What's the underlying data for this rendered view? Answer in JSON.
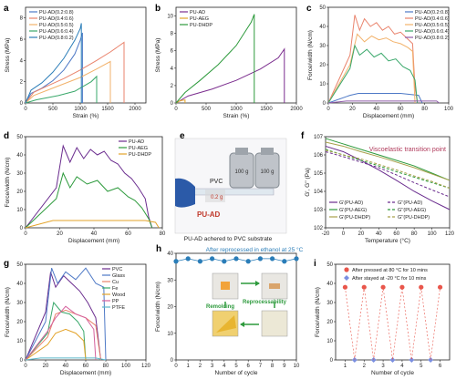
{
  "chart_data": [
    {
      "panel": "a",
      "type": "line",
      "xlabel": "Strain (%)",
      "ylabel": "Stress (MPa)",
      "xlim": [
        0,
        2200
      ],
      "ylim": [
        0,
        9
      ],
      "xticks": [
        0,
        500,
        1000,
        1500,
        2000
      ],
      "yticks": [
        0,
        2,
        4,
        6,
        8
      ],
      "legend": "top-left",
      "series": [
        {
          "name": "PU-AD(0.2:0.8)",
          "color": "#4e79c6",
          "x": [
            0,
            100,
            300,
            500,
            700,
            900,
            1000,
            1040,
            1040
          ],
          "y": [
            0,
            0.9,
            1.4,
            2.1,
            3.1,
            4.6,
            5.9,
            6.6,
            0
          ]
        },
        {
          "name": "PU-AD(0.4:0.6)",
          "color": "#e9836c",
          "x": [
            0,
            150,
            400,
            700,
            1000,
            1300,
            1550,
            1800,
            1800
          ],
          "y": [
            0,
            1.0,
            1.6,
            2.3,
            3.1,
            4.0,
            4.8,
            5.7,
            0
          ]
        },
        {
          "name": "PU-AD(0.5:0.5)",
          "color": "#f2b26b",
          "x": [
            0,
            150,
            400,
            700,
            1000,
            1300,
            1550,
            1550
          ],
          "y": [
            0,
            0.7,
            1.2,
            1.8,
            2.4,
            3.2,
            3.9,
            0
          ]
        },
        {
          "name": "PU-AD(0.6:0.4)",
          "color": "#3aa86b",
          "x": [
            0,
            200,
            600,
            900,
            1200,
            1300,
            1300
          ],
          "y": [
            0,
            0.3,
            0.7,
            1.1,
            2.0,
            2.5,
            0
          ]
        },
        {
          "name": "PU-AD(0.8:0.2)",
          "color": "#2a7db8",
          "x": [
            0,
            100,
            300,
            500,
            700,
            900,
            1000,
            1020,
            1020
          ],
          "y": [
            0,
            1.2,
            1.9,
            2.9,
            4.2,
            5.9,
            7.0,
            7.5,
            0
          ]
        }
      ]
    },
    {
      "panel": "b",
      "type": "line",
      "xlabel": "Strain (%)",
      "ylabel": "Stress (MPa)",
      "xlim": [
        0,
        2000
      ],
      "ylim": [
        0,
        11
      ],
      "xticks": [
        0,
        500,
        1000,
        1500,
        2000
      ],
      "yticks": [
        0,
        2,
        4,
        6,
        8,
        10
      ],
      "legend": "top-left",
      "series": [
        {
          "name": "PU-AD",
          "color": "#7b2d8e",
          "x": [
            0,
            200,
            600,
            1000,
            1400,
            1700,
            1800,
            1800
          ],
          "y": [
            0,
            0.8,
            1.6,
            2.6,
            3.9,
            5.2,
            6.2,
            0
          ]
        },
        {
          "name": "PU-AEG",
          "color": "#e3a32a",
          "x": [
            0,
            50,
            100,
            150,
            150
          ],
          "y": [
            0,
            0.2,
            0.3,
            0.35,
            0
          ]
        },
        {
          "name": "PU-DHDP",
          "color": "#2d9a3c",
          "x": [
            0,
            150,
            400,
            700,
            1000,
            1250,
            1300,
            1300
          ],
          "y": [
            0,
            1.2,
            2.6,
            4.4,
            6.6,
            9.3,
            10.2,
            0
          ]
        }
      ]
    },
    {
      "panel": "c",
      "type": "line",
      "xlabel": "Displacement (mm)",
      "ylabel": "Force/width (N/cm)",
      "xlim": [
        0,
        100
      ],
      "ylim": [
        0,
        50
      ],
      "xticks": [
        0,
        20,
        40,
        60,
        80,
        100
      ],
      "yticks": [
        0,
        10,
        20,
        30,
        40,
        50
      ],
      "legend": "top-right",
      "series": [
        {
          "name": "PU-AD(0.2:0.8)",
          "color": "#4e79c6",
          "x": [
            0,
            18,
            25,
            40,
            60,
            75,
            78
          ],
          "y": [
            0,
            4,
            5,
            5,
            5,
            4,
            0
          ]
        },
        {
          "name": "PU-AD(0.4:0.6)",
          "color": "#e9836c",
          "x": [
            0,
            18,
            22,
            26,
            30,
            35,
            40,
            45,
            50,
            55,
            60,
            65,
            70,
            72,
            74
          ],
          "y": [
            0,
            25,
            46,
            38,
            44,
            40,
            42,
            38,
            40,
            36,
            37,
            34,
            31,
            8,
            0
          ]
        },
        {
          "name": "PU-AD(0.5:0.5)",
          "color": "#f2b26b",
          "x": [
            0,
            18,
            24,
            30,
            36,
            42,
            48,
            54,
            60,
            66,
            70,
            72
          ],
          "y": [
            0,
            20,
            36,
            32,
            35,
            33,
            34,
            32,
            31,
            29,
            27,
            0
          ]
        },
        {
          "name": "PU-AD(0.6:0.4)",
          "color": "#3aa86b",
          "x": [
            0,
            18,
            22,
            26,
            32,
            38,
            44,
            50,
            56,
            62,
            68,
            72,
            74
          ],
          "y": [
            0,
            18,
            30,
            25,
            28,
            24,
            26,
            22,
            23,
            19,
            17,
            12,
            0
          ]
        },
        {
          "name": "PU-AD(0.8:0.2)",
          "color": "#8e5aa8",
          "x": [
            0,
            15,
            30,
            50,
            70,
            90,
            92
          ],
          "y": [
            0,
            1,
            1,
            1,
            1,
            1,
            0
          ]
        }
      ]
    },
    {
      "panel": "d",
      "type": "line",
      "xlabel": "Displacement (mm)",
      "ylabel": "Force/width (N/cm)",
      "xlim": [
        0,
        80
      ],
      "ylim": [
        0,
        50
      ],
      "xticks": [
        0,
        20,
        40,
        60,
        80
      ],
      "yticks": [
        0,
        10,
        20,
        30,
        40,
        50
      ],
      "legend": "top-right",
      "series": [
        {
          "name": "PU-AD",
          "color": "#6a2c8e",
          "x": [
            0,
            18,
            22,
            26,
            30,
            34,
            38,
            42,
            46,
            50,
            54,
            58,
            62,
            66,
            70,
            72,
            74
          ],
          "y": [
            0,
            22,
            45,
            36,
            44,
            38,
            43,
            40,
            42,
            37,
            35,
            30,
            27,
            22,
            16,
            6,
            0
          ]
        },
        {
          "name": "PU-AEG",
          "color": "#2d9a3c",
          "x": [
            0,
            18,
            22,
            26,
            30,
            36,
            42,
            48,
            54,
            60,
            64,
            68,
            72,
            74
          ],
          "y": [
            0,
            16,
            30,
            22,
            28,
            24,
            26,
            20,
            22,
            17,
            15,
            11,
            5,
            0
          ]
        },
        {
          "name": "PU-DHDP",
          "color": "#e3a32a",
          "x": [
            0,
            16,
            30,
            50,
            70,
            76,
            78
          ],
          "y": [
            0,
            4,
            4,
            4,
            4,
            3,
            0
          ]
        }
      ]
    },
    {
      "panel": "f",
      "type": "line",
      "xlabel": "Temperature (°C)",
      "ylabel": "G', G'' (Pa)",
      "scale": "log-y",
      "xlim": [
        -20,
        120
      ],
      "ylim": [
        100,
        10000000
      ],
      "xticks": [
        -20,
        0,
        20,
        40,
        60,
        80,
        100,
        120
      ],
      "annotation": "Viscoelastic transition point",
      "legend": "bottom-left",
      "series": [
        {
          "name": "G'(PU-AD)",
          "color": "#6a2c8e",
          "dash": false,
          "x": [
            -20,
            0,
            20,
            40,
            60,
            80,
            100,
            120
          ],
          "y": [
            3000000,
            1500000,
            500000,
            150000,
            40000,
            10000,
            3000,
            1000
          ]
        },
        {
          "name": "G'(PU-AEG)",
          "color": "#2d9a3c",
          "dash": false,
          "x": [
            -20,
            0,
            20,
            40,
            60,
            80,
            100,
            120
          ],
          "y": [
            8000000,
            4000000,
            2000000,
            1000000,
            500000,
            250000,
            100000,
            40000
          ]
        },
        {
          "name": "G'(PU-DHDP)",
          "color": "#a8a04a",
          "dash": false,
          "x": [
            -20,
            0,
            20,
            40,
            60,
            80,
            100,
            120
          ],
          "y": [
            5000000,
            3000000,
            1500000,
            800000,
            400000,
            200000,
            90000,
            40000
          ]
        },
        {
          "name": "G''(PU-AD)",
          "color": "#6a2c8e",
          "dash": true,
          "x": [
            -20,
            0,
            20,
            40,
            60,
            80,
            100,
            120
          ],
          "y": [
            1500000,
            800000,
            400000,
            200000,
            80000,
            30000,
            12000,
            5000
          ]
        },
        {
          "name": "G''(PU-AEG)",
          "color": "#2d9a3c",
          "dash": true,
          "x": [
            -20,
            0,
            20,
            40,
            60,
            80,
            100,
            120
          ],
          "y": [
            2000000,
            1000000,
            500000,
            250000,
            120000,
            60000,
            30000,
            15000
          ]
        },
        {
          "name": "G''(PU-DHDP)",
          "color": "#a8a04a",
          "dash": true,
          "x": [
            -20,
            0,
            20,
            40,
            60,
            80,
            100,
            120
          ],
          "y": [
            1800000,
            1000000,
            600000,
            300000,
            150000,
            70000,
            35000,
            15000
          ]
        }
      ]
    },
    {
      "panel": "g",
      "type": "line",
      "xlabel": "Displacement (mm)",
      "ylabel": "Force/width (N/cm)",
      "xlim": [
        0,
        120
      ],
      "ylim": [
        0,
        50
      ],
      "xticks": [
        0,
        20,
        40,
        60,
        80,
        100,
        120
      ],
      "yticks": [
        0,
        10,
        20,
        30,
        40,
        50
      ],
      "legend": "top-right",
      "series": [
        {
          "name": "PVC",
          "color": "#6a2c8e",
          "x": [
            0,
            20,
            25,
            30,
            38,
            46,
            54,
            62,
            70,
            75
          ],
          "y": [
            0,
            25,
            46,
            38,
            44,
            40,
            36,
            30,
            22,
            0
          ]
        },
        {
          "name": "Glass",
          "color": "#4e79c6",
          "x": [
            0,
            20,
            26,
            32,
            40,
            50,
            60,
            70,
            78,
            80
          ],
          "y": [
            0,
            20,
            48,
            40,
            46,
            42,
            48,
            40,
            38,
            0
          ]
        },
        {
          "name": "Cu",
          "color": "#e9836c",
          "x": [
            0,
            22,
            30,
            40,
            50,
            60,
            70,
            75
          ],
          "y": [
            0,
            12,
            24,
            26,
            24,
            22,
            18,
            0
          ]
        },
        {
          "name": "Fe",
          "color": "#3aa86b",
          "x": [
            0,
            22,
            28,
            36,
            44,
            52,
            58,
            60
          ],
          "y": [
            0,
            14,
            30,
            25,
            24,
            20,
            15,
            0
          ]
        },
        {
          "name": "Wood",
          "color": "#e3a32a",
          "x": [
            0,
            22,
            30,
            40,
            50,
            58,
            60
          ],
          "y": [
            0,
            8,
            14,
            16,
            14,
            10,
            0
          ]
        },
        {
          "name": "PP",
          "color": "#d5609d",
          "x": [
            0,
            22,
            30,
            40,
            50,
            60,
            68,
            70
          ],
          "y": [
            0,
            15,
            22,
            28,
            24,
            22,
            16,
            0
          ]
        },
        {
          "name": "PTFE",
          "color": "#5bb8c9",
          "x": [
            0,
            15,
            30,
            50,
            70,
            80
          ],
          "y": [
            0,
            1,
            1,
            1,
            1,
            0
          ]
        }
      ]
    },
    {
      "panel": "h",
      "type": "scatter",
      "xlabel": "Number of cycle",
      "ylabel": "Force/width (N/cm)",
      "xlim": [
        0,
        10
      ],
      "ylim": [
        0,
        40
      ],
      "xticks": [
        0,
        1,
        2,
        3,
        4,
        5,
        6,
        7,
        8,
        9,
        10
      ],
      "yticks": [
        0,
        10,
        20,
        30,
        40
      ],
      "series": [
        {
          "name": "",
          "color": "#2a7db8",
          "x": [
            0,
            1,
            2,
            3,
            4,
            5,
            6,
            7,
            8,
            9,
            10
          ],
          "y": [
            37,
            38,
            37,
            38,
            37,
            38,
            37,
            38,
            38,
            37,
            38
          ]
        }
      ]
    },
    {
      "panel": "i",
      "type": "scatter",
      "xlabel": "Number of cycle",
      "ylabel": "Force/width (N/cm)",
      "xlim": [
        0.5,
        6.5
      ],
      "ylim": [
        0,
        50
      ],
      "xticks": [
        1,
        2,
        3,
        4,
        5,
        6
      ],
      "yticks": [
        0,
        10,
        20,
        30,
        40,
        50
      ],
      "legend": "top-center",
      "series": [
        {
          "name": "After pressed at 80 °C for 10 mins",
          "color": "#e9564b",
          "marker": "circle",
          "x": [
            1,
            2,
            3,
            4,
            5,
            6
          ],
          "y": [
            38,
            38,
            38,
            38,
            38,
            38
          ]
        },
        {
          "name": "After stayed at -20 °C for 10 mins",
          "color": "#7b8fe0",
          "marker": "diamond",
          "x": [
            1.5,
            2.5,
            3.5,
            4.5,
            5.5
          ],
          "y": [
            0,
            0,
            0,
            0,
            0
          ]
        }
      ]
    }
  ],
  "panels": {
    "a": {
      "label": "a"
    },
    "b": {
      "label": "b"
    },
    "c": {
      "label": "c"
    },
    "d": {
      "label": "d"
    },
    "e": {
      "label": "e",
      "caption": "PU-AD achered to PVC substrate",
      "pvc_label": "PVC",
      "pu_label": "PU-AD",
      "weight1": "100 g",
      "weight2": "100 g",
      "mass": "0.2 g"
    },
    "f": {
      "label": "f"
    },
    "g": {
      "label": "g"
    },
    "h": {
      "label": "h",
      "header": "After reprocessed in ethanol at 25 °C",
      "remolding": "Remolding",
      "reprocessability": "Reprocessability"
    },
    "i": {
      "label": "i"
    }
  },
  "colors": {
    "axis": "#222222",
    "pvc_red": "#c0392b",
    "glove_blue": "#2b5aa8",
    "accent_green": "#2d9a3c"
  }
}
